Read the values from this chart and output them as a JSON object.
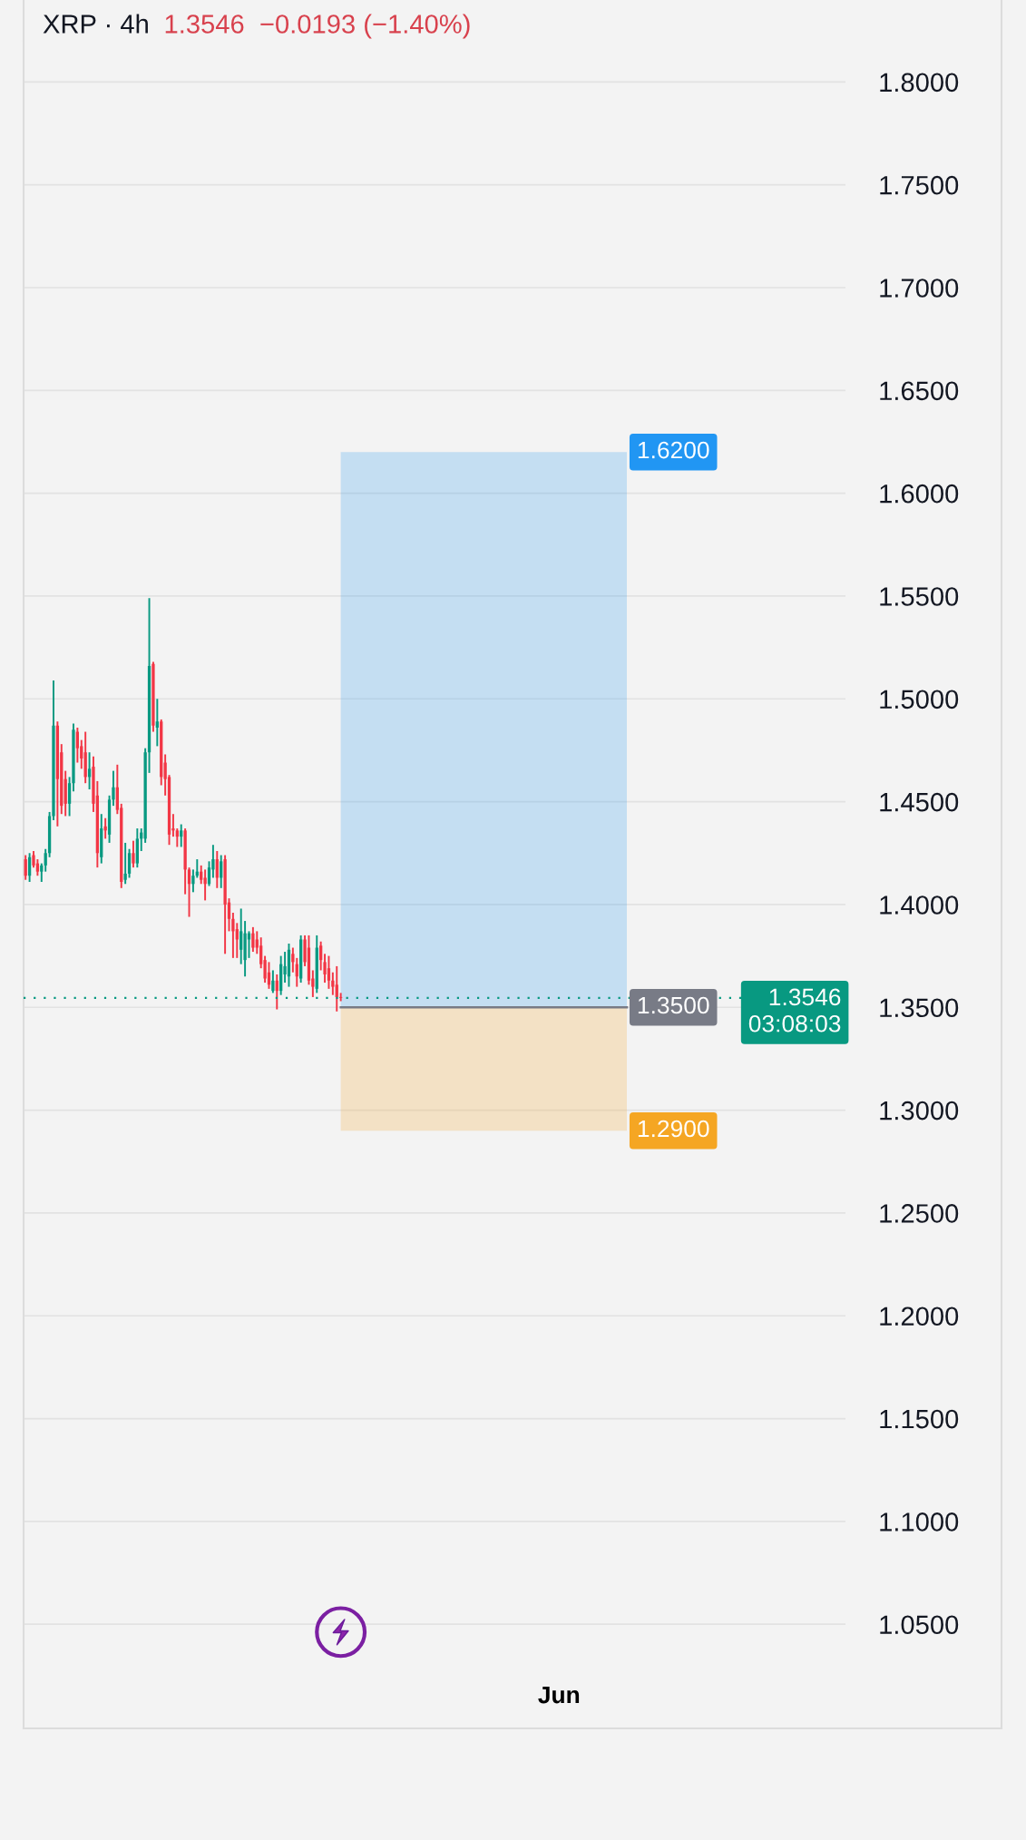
{
  "chart_data": {
    "type": "candlestick",
    "title": "XRP · 4h",
    "subtitle": "1.3546  −0.0193 (−1.40%)",
    "categories": [
      null,
      null,
      null,
      null,
      null,
      null,
      null,
      null,
      null,
      null,
      null,
      null,
      null,
      null,
      null,
      null,
      null,
      null,
      null,
      null,
      null,
      null,
      null,
      null,
      null,
      null,
      null,
      null,
      null,
      null,
      null,
      null,
      null,
      null,
      null,
      null,
      null,
      null,
      null,
      null,
      null,
      null,
      null,
      null,
      null,
      null,
      null,
      null,
      null,
      null,
      null,
      null,
      null,
      null,
      null,
      null,
      null,
      null,
      null,
      null,
      null,
      null,
      null,
      null,
      null,
      null,
      null,
      null,
      null,
      null,
      null,
      null,
      null,
      null,
      null,
      null,
      null,
      null,
      null,
      null,
      null,
      null,
      null,
      null,
      null,
      null,
      null,
      null,
      null,
      null,
      null,
      null,
      null,
      null,
      null,
      null,
      null,
      null,
      null,
      null,
      null,
      null,
      null,
      null,
      null,
      null,
      null,
      null,
      null,
      null,
      null,
      null,
      null,
      null,
      null,
      null,
      null,
      null,
      null,
      null,
      null,
      null,
      null,
      null,
      null,
      null,
      null,
      null,
      null,
      null,
      null,
      null,
      null,
      null,
      null,
      null,
      null,
      null,
      null,
      null,
      null,
      null,
      null,
      null,
      null,
      null,
      null,
      null,
      null,
      null,
      null,
      null,
      null,
      null,
      null,
      null,
      null,
      null,
      null,
      null,
      null,
      null,
      null,
      null,
      null,
      null,
      null,
      null,
      null,
      null,
      null,
      null,
      null,
      null,
      null,
      null,
      null,
      null,
      null,
      null,
      null,
      null,
      null,
      null,
      null,
      null,
      null,
      null,
      null,
      null,
      null,
      null,
      null,
      null,
      null,
      null,
      null,
      null,
      null,
      null,
      null,
      null,
      null,
      null,
      null,
      null
    ],
    "ohlc": [
      [
        1.422,
        1.424,
        1.412,
        1.414
      ],
      [
        1.414,
        1.425,
        1.411,
        1.423
      ],
      [
        1.424,
        1.426,
        1.418,
        1.419
      ],
      [
        1.42,
        1.422,
        1.414,
        1.416
      ],
      [
        1.416,
        1.42,
        1.411,
        1.419
      ],
      [
        1.419,
        1.427,
        1.416,
        1.425
      ],
      [
        1.425,
        1.445,
        1.423,
        1.443
      ],
      [
        1.443,
        1.509,
        1.441,
        1.487
      ],
      [
        1.487,
        1.489,
        1.438,
        1.461
      ],
      [
        1.474,
        1.478,
        1.444,
        1.448
      ],
      [
        1.461,
        1.465,
        1.443,
        1.449
      ],
      [
        1.449,
        1.462,
        1.443,
        1.459
      ],
      [
        1.459,
        1.488,
        1.455,
        1.485
      ],
      [
        1.484,
        1.486,
        1.469,
        1.476
      ],
      [
        1.477,
        1.48,
        1.466,
        1.471
      ],
      [
        1.474,
        1.484,
        1.459,
        1.462
      ],
      [
        1.462,
        1.474,
        1.456,
        1.466
      ],
      [
        1.467,
        1.472,
        1.445,
        1.449
      ],
      [
        1.453,
        1.46,
        1.418,
        1.425
      ],
      [
        1.423,
        1.444,
        1.42,
        1.437
      ],
      [
        1.438,
        1.442,
        1.432,
        1.436
      ],
      [
        1.434,
        1.453,
        1.43,
        1.451
      ],
      [
        1.451,
        1.465,
        1.448,
        1.457
      ],
      [
        1.457,
        1.468,
        1.444,
        1.446
      ],
      [
        1.447,
        1.449,
        1.408,
        1.411
      ],
      [
        1.412,
        1.43,
        1.41,
        1.415
      ],
      [
        1.415,
        1.427,
        1.413,
        1.425
      ],
      [
        1.425,
        1.431,
        1.418,
        1.42
      ],
      [
        1.42,
        1.437,
        1.418,
        1.432
      ],
      [
        1.432,
        1.437,
        1.426,
        1.435
      ],
      [
        1.432,
        1.476,
        1.43,
        1.474
      ],
      [
        1.474,
        1.549,
        1.464,
        1.516
      ],
      [
        1.517,
        1.518,
        1.484,
        1.487
      ],
      [
        1.486,
        1.5,
        1.477,
        1.489
      ],
      [
        1.489,
        1.49,
        1.458,
        1.462
      ],
      [
        1.469,
        1.473,
        1.453,
        1.461
      ],
      [
        1.462,
        1.463,
        1.429,
        1.434
      ],
      [
        1.437,
        1.444,
        1.433,
        1.436
      ],
      [
        1.436,
        1.437,
        1.428,
        1.433
      ],
      [
        1.433,
        1.439,
        1.428,
        1.436
      ],
      [
        1.436,
        1.437,
        1.405,
        1.417
      ],
      [
        1.417,
        1.418,
        1.394,
        1.41
      ],
      [
        1.41,
        1.417,
        1.406,
        1.414
      ],
      [
        1.414,
        1.422,
        1.413,
        1.416
      ],
      [
        1.416,
        1.419,
        1.41,
        1.412
      ],
      [
        1.413,
        1.417,
        1.402,
        1.41
      ],
      [
        1.41,
        1.421,
        1.409,
        1.418
      ],
      [
        1.417,
        1.429,
        1.413,
        1.422
      ],
      [
        1.422,
        1.426,
        1.408,
        1.413
      ],
      [
        1.413,
        1.424,
        1.408,
        1.421
      ],
      [
        1.422,
        1.424,
        1.376,
        1.4
      ],
      [
        1.401,
        1.403,
        1.387,
        1.393
      ],
      [
        1.393,
        1.396,
        1.374,
        1.387
      ],
      [
        1.388,
        1.391,
        1.374,
        1.383
      ],
      [
        1.378,
        1.398,
        1.371,
        1.387
      ],
      [
        1.373,
        1.392,
        1.365,
        1.386
      ],
      [
        1.383,
        1.387,
        1.374,
        1.386
      ],
      [
        1.386,
        1.389,
        1.377,
        1.379
      ],
      [
        1.383,
        1.387,
        1.376,
        1.379
      ],
      [
        1.38,
        1.384,
        1.369,
        1.371
      ],
      [
        1.373,
        1.375,
        1.362,
        1.364
      ],
      [
        1.367,
        1.372,
        1.359,
        1.361
      ],
      [
        1.358,
        1.368,
        1.357,
        1.363
      ],
      [
        1.363,
        1.366,
        1.349,
        1.358
      ],
      [
        1.358,
        1.375,
        1.356,
        1.371
      ],
      [
        1.366,
        1.377,
        1.362,
        1.37
      ],
      [
        1.365,
        1.381,
        1.36,
        1.378
      ],
      [
        1.376,
        1.379,
        1.367,
        1.372
      ],
      [
        1.371,
        1.374,
        1.36,
        1.365
      ],
      [
        1.364,
        1.385,
        1.362,
        1.383
      ],
      [
        1.383,
        1.385,
        1.37,
        1.372
      ],
      [
        1.379,
        1.385,
        1.361,
        1.363
      ],
      [
        1.364,
        1.368,
        1.355,
        1.36
      ],
      [
        1.359,
        1.385,
        1.357,
        1.379
      ],
      [
        1.38,
        1.382,
        1.368,
        1.373
      ],
      [
        1.372,
        1.376,
        1.362,
        1.366
      ],
      [
        1.369,
        1.375,
        1.359,
        1.363
      ],
      [
        1.363,
        1.367,
        1.356,
        1.36
      ],
      [
        1.361,
        1.37,
        1.348,
        1.355
      ],
      [
        1.355,
        1.357,
        1.353,
        1.3546
      ],
      null,
      null,
      null,
      null,
      null,
      null,
      null,
      null,
      null,
      null,
      null,
      null,
      null,
      null,
      null,
      null,
      null,
      null,
      null,
      null,
      null,
      null,
      null,
      null,
      null,
      null,
      null,
      null,
      null,
      null,
      null,
      null,
      null,
      null,
      null,
      null,
      null,
      null,
      null,
      null,
      null,
      null,
      null,
      null,
      null,
      null,
      null,
      null,
      null,
      null,
      null,
      null,
      null,
      null,
      null,
      null,
      null,
      null,
      null,
      null,
      null,
      null,
      null,
      null,
      null,
      null,
      null,
      null,
      null,
      null,
      null,
      null,
      null,
      null,
      null,
      null,
      null,
      null,
      null,
      null,
      null,
      null,
      null,
      null,
      null,
      null,
      null,
      null,
      null,
      null,
      null,
      null,
      null,
      null,
      null,
      null,
      null,
      null,
      null,
      null,
      null,
      null,
      null,
      null,
      null,
      null,
      null,
      null,
      null,
      null,
      null,
      null,
      null,
      null,
      null,
      null,
      null,
      null,
      null,
      null,
      null,
      null,
      null,
      null,
      null,
      null
    ],
    "annotations": [
      "Jun"
    ],
    "ylim": [
      1.032,
      1.82
    ],
    "yticks": [
      {
        "value": 1.05,
        "label": "1.0500"
      },
      {
        "value": 1.1,
        "label": "1.1000"
      },
      {
        "value": 1.15,
        "label": "1.1500"
      },
      {
        "value": 1.2,
        "label": "1.2000"
      },
      {
        "value": 1.25,
        "label": "1.2500"
      },
      {
        "value": 1.3,
        "label": "1.3000"
      },
      {
        "value": 1.35,
        "label": "1.3500"
      },
      {
        "value": 1.4,
        "label": "1.4000"
      },
      {
        "value": 1.45,
        "label": "1.4500"
      },
      {
        "value": 1.5,
        "label": "1.5000"
      },
      {
        "value": 1.55,
        "label": "1.5500"
      },
      {
        "value": 1.6,
        "label": "1.6000"
      },
      {
        "value": 1.65,
        "label": "1.6500"
      },
      {
        "value": 1.7,
        "label": "1.7000"
      },
      {
        "value": 1.75,
        "label": "1.7500"
      },
      {
        "value": 1.8,
        "label": "1.8000"
      }
    ],
    "grid": "y",
    "bands": [
      {
        "axis": "y",
        "from": 1.35,
        "to": 1.62,
        "label": "1.6200",
        "color": "#2196f3"
      },
      {
        "axis": "y",
        "from": 1.35,
        "to": 1.29,
        "label": "1.2900",
        "color": "#f5a623"
      }
    ],
    "ref_lines": [
      {
        "axis": "y",
        "value": 1.3546,
        "label": "1.3546\n03:08:03",
        "color": "#089981",
        "line_style": "dotted"
      },
      {
        "axis": "y",
        "value": 1.35,
        "label": "1.3500",
        "color": "#787b86",
        "line_style": "solid"
      }
    ]
  }
}
